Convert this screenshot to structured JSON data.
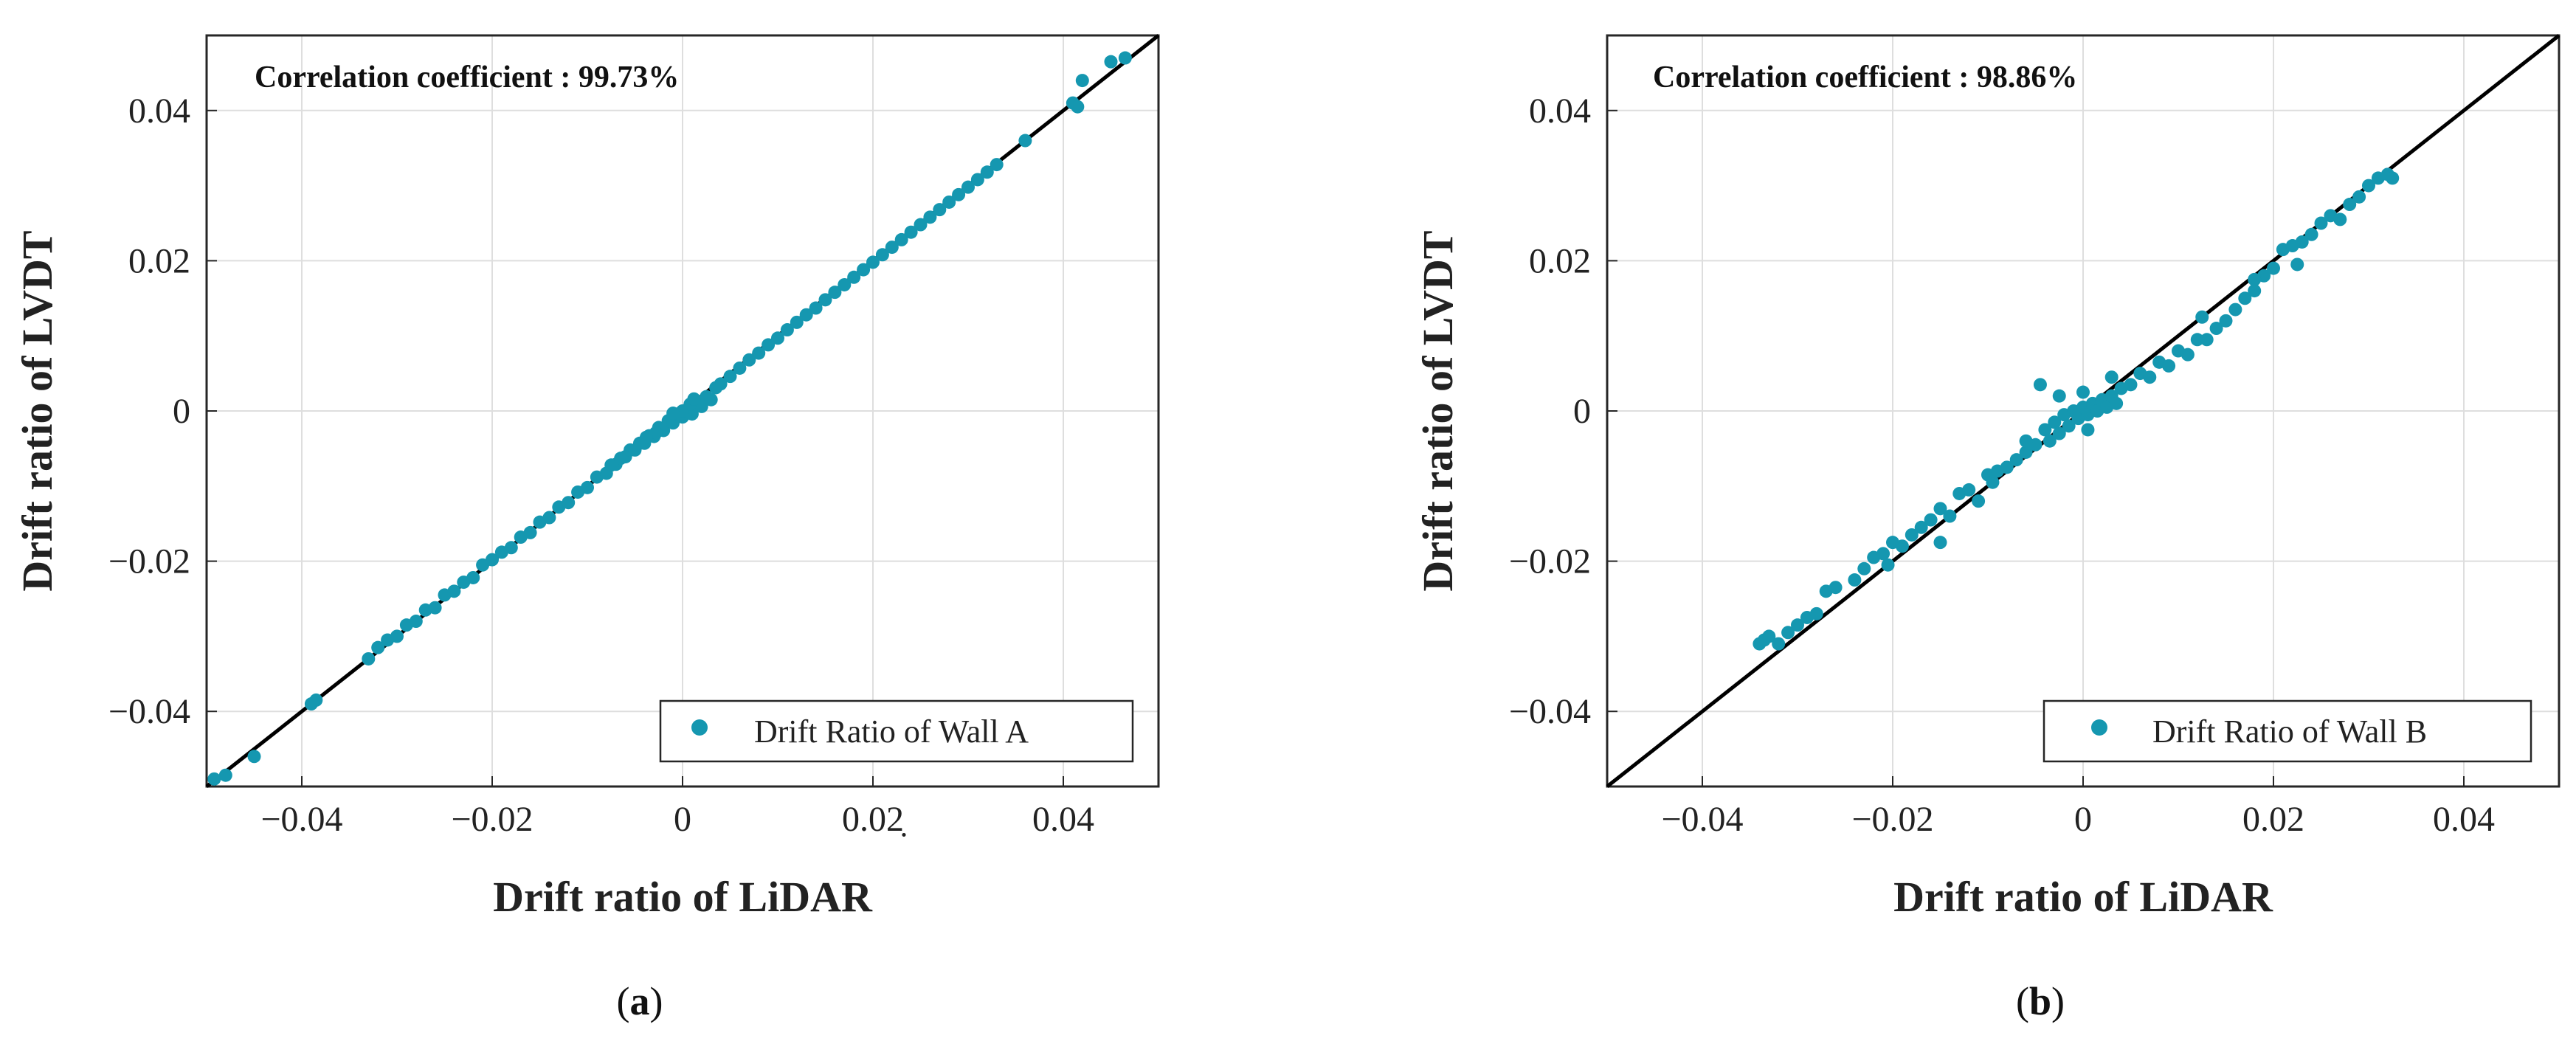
{
  "chart_data": [
    {
      "type": "scatter",
      "panel_label_open": "(",
      "panel_label_letter": "a",
      "panel_label_close": ")",
      "annotation": "Correlation coefficient : 99.73%",
      "xlabel": "Drift ratio of LiDAR",
      "ylabel": "Drift ratio of LVDT",
      "xlim": [
        -0.05,
        0.05
      ],
      "ylim": [
        -0.05,
        0.05
      ],
      "x_ticks": [
        -0.04,
        -0.02,
        0,
        0.02,
        0.04
      ],
      "x_tick_labels": [
        "−0.04",
        "−0.02",
        "0",
        "0.02̣",
        "0.04"
      ],
      "y_ticks": [
        -0.04,
        -0.02,
        0,
        0.02,
        0.04
      ],
      "y_tick_labels": [
        "−0.04",
        "−0.02",
        "0",
        "0.02",
        "0.04"
      ],
      "grid": true,
      "legend": {
        "label": "Drift Ratio of Wall A",
        "placement": "bottom-right"
      },
      "marker_color": "#1597b0",
      "reference_line": {
        "x": [
          -0.05,
          0.05
        ],
        "y": [
          -0.05,
          0.05
        ],
        "color": "#000000"
      },
      "series": [
        {
          "name": "Drift Ratio of Wall A",
          "points": [
            [
              -0.048,
              -0.0485
            ],
            [
              -0.045,
              -0.046
            ],
            [
              -0.039,
              -0.039
            ],
            [
              -0.0385,
              -0.0385
            ],
            [
              -0.033,
              -0.033
            ],
            [
              -0.032,
              -0.0315
            ],
            [
              -0.031,
              -0.0305
            ],
            [
              -0.03,
              -0.03
            ],
            [
              -0.029,
              -0.0285
            ],
            [
              -0.028,
              -0.028
            ],
            [
              -0.027,
              -0.0265
            ],
            [
              -0.026,
              -0.0262
            ],
            [
              -0.025,
              -0.0245
            ],
            [
              -0.024,
              -0.024
            ],
            [
              -0.023,
              -0.0228
            ],
            [
              -0.022,
              -0.0222
            ],
            [
              -0.021,
              -0.0205
            ],
            [
              -0.02,
              -0.0198
            ],
            [
              -0.019,
              -0.0188
            ],
            [
              -0.018,
              -0.0182
            ],
            [
              -0.017,
              -0.0168
            ],
            [
              -0.016,
              -0.0162
            ],
            [
              -0.015,
              -0.0148
            ],
            [
              -0.014,
              -0.0142
            ],
            [
              -0.013,
              -0.0128
            ],
            [
              -0.012,
              -0.0122
            ],
            [
              -0.011,
              -0.0108
            ],
            [
              -0.01,
              -0.0102
            ],
            [
              -0.009,
              -0.0088
            ],
            [
              -0.008,
              -0.0083
            ],
            [
              -0.0075,
              -0.0072
            ],
            [
              -0.007,
              -0.0071
            ],
            [
              -0.0065,
              -0.0063
            ],
            [
              -0.006,
              -0.0061
            ],
            [
              -0.0055,
              -0.0052
            ],
            [
              -0.005,
              -0.0052
            ],
            [
              -0.0045,
              -0.0043
            ],
            [
              -0.004,
              -0.0043
            ],
            [
              -0.0035,
              -0.0033
            ],
            [
              -0.003,
              -0.0034
            ],
            [
              -0.0025,
              -0.0022
            ],
            [
              -0.002,
              -0.0026
            ],
            [
              -0.0015,
              -0.0013
            ],
            [
              -0.001,
              -0.0016
            ],
            [
              -0.0005,
              -0.0004
            ],
            [
              0.0,
              -0.0008
            ],
            [
              0.0005,
              0.0002
            ],
            [
              0.001,
              -0.0004
            ],
            [
              0.0015,
              0.0011
            ],
            [
              0.002,
              0.0006
            ],
            [
              0.0025,
              0.0019
            ],
            [
              0.003,
              0.0015
            ],
            [
              0.0035,
              0.0031
            ],
            [
              0.004,
              0.0036
            ],
            [
              0.005,
              0.0046
            ],
            [
              0.006,
              0.0057
            ],
            [
              0.007,
              0.0068
            ],
            [
              0.008,
              0.0077
            ],
            [
              0.009,
              0.0088
            ],
            [
              0.01,
              0.0097
            ],
            [
              0.011,
              0.0108
            ],
            [
              0.012,
              0.0118
            ],
            [
              0.013,
              0.0128
            ],
            [
              0.014,
              0.0137
            ],
            [
              0.015,
              0.0148
            ],
            [
              0.016,
              0.0158
            ],
            [
              0.017,
              0.0168
            ],
            [
              0.018,
              0.0178
            ],
            [
              0.019,
              0.0188
            ],
            [
              0.02,
              0.0198
            ],
            [
              0.021,
              0.0208
            ],
            [
              0.022,
              0.0218
            ],
            [
              0.023,
              0.0228
            ],
            [
              0.024,
              0.0238
            ],
            [
              0.025,
              0.0248
            ],
            [
              0.026,
              0.0258
            ],
            [
              0.027,
              0.0268
            ],
            [
              0.028,
              0.0278
            ],
            [
              0.029,
              0.0288
            ],
            [
              0.03,
              0.0298
            ],
            [
              0.031,
              0.0308
            ],
            [
              0.032,
              0.0318
            ],
            [
              0.033,
              0.0328
            ],
            [
              0.036,
              0.036
            ],
            [
              0.041,
              0.041
            ],
            [
              0.0415,
              0.0405
            ],
            [
              0.042,
              0.044
            ],
            [
              0.045,
              0.0465
            ],
            [
              0.0465,
              0.047
            ],
            [
              -0.0492,
              -0.049
            ],
            [
              0.0,
              0.0
            ],
            [
              -0.001,
              -0.0003
            ],
            [
              0.0008,
              0.0009
            ],
            [
              -0.0028,
              -0.0029
            ],
            [
              0.0012,
              0.0016
            ],
            [
              -0.0038,
              -0.0035
            ]
          ]
        }
      ]
    },
    {
      "type": "scatter",
      "panel_label_open": "(",
      "panel_label_letter": "b",
      "panel_label_close": ")",
      "annotation": "Correlation coefficient : 98.86%",
      "xlabel": "Drift ratio of LiDAR",
      "ylabel": "Drift ratio of LVDT",
      "xlim": [
        -0.05,
        0.05
      ],
      "ylim": [
        -0.05,
        0.05
      ],
      "x_ticks": [
        -0.04,
        -0.02,
        0,
        0.02,
        0.04
      ],
      "x_tick_labels": [
        "−0.04",
        "−0.02",
        "0",
        "0.02",
        "0.04"
      ],
      "y_ticks": [
        -0.04,
        -0.02,
        0,
        0.02,
        0.04
      ],
      "y_tick_labels": [
        "−0.04",
        "−0.02",
        "0",
        "0.02",
        "0.04"
      ],
      "grid": true,
      "legend": {
        "label": "Drift Ratio of Wall B",
        "placement": "bottom-right"
      },
      "marker_color": "#1597b0",
      "reference_line": {
        "x": [
          -0.05,
          0.05
        ],
        "y": [
          -0.05,
          0.05
        ],
        "color": "#000000"
      },
      "series": [
        {
          "name": "Drift Ratio of Wall B",
          "points": [
            [
              -0.034,
              -0.031
            ],
            [
              -0.0335,
              -0.0305
            ],
            [
              -0.033,
              -0.03
            ],
            [
              -0.032,
              -0.031
            ],
            [
              -0.031,
              -0.0295
            ],
            [
              -0.03,
              -0.0285
            ],
            [
              -0.029,
              -0.0275
            ],
            [
              -0.028,
              -0.027
            ],
            [
              -0.027,
              -0.024
            ],
            [
              -0.026,
              -0.0235
            ],
            [
              -0.024,
              -0.0225
            ],
            [
              -0.023,
              -0.021
            ],
            [
              -0.022,
              -0.0195
            ],
            [
              -0.021,
              -0.019
            ],
            [
              -0.02,
              -0.0175
            ],
            [
              -0.019,
              -0.018
            ],
            [
              -0.018,
              -0.0165
            ],
            [
              -0.017,
              -0.0155
            ],
            [
              -0.016,
              -0.0145
            ],
            [
              -0.015,
              -0.013
            ],
            [
              -0.014,
              -0.014
            ],
            [
              -0.013,
              -0.011
            ],
            [
              -0.012,
              -0.0105
            ],
            [
              -0.011,
              -0.012
            ],
            [
              -0.01,
              -0.0085
            ],
            [
              -0.009,
              -0.008
            ],
            [
              -0.008,
              -0.0075
            ],
            [
              -0.007,
              -0.0065
            ],
            [
              -0.006,
              -0.0055
            ],
            [
              -0.005,
              -0.0045
            ],
            [
              -0.004,
              -0.0025
            ],
            [
              -0.0035,
              -0.004
            ],
            [
              -0.003,
              -0.0015
            ],
            [
              -0.0025,
              -0.003
            ],
            [
              -0.002,
              -0.0005
            ],
            [
              -0.0015,
              -0.002
            ],
            [
              -0.001,
              0.0
            ],
            [
              -0.0005,
              -0.001
            ],
            [
              0.0,
              0.0005
            ],
            [
              0.0005,
              -0.0005
            ],
            [
              0.001,
              0.001
            ],
            [
              0.0015,
              0.0
            ],
            [
              0.002,
              0.0015
            ],
            [
              0.0025,
              0.0005
            ],
            [
              0.003,
              0.002
            ],
            [
              0.0035,
              0.001
            ],
            [
              0.004,
              0.003
            ],
            [
              0.005,
              0.0035
            ],
            [
              0.006,
              0.005
            ],
            [
              0.007,
              0.0045
            ],
            [
              0.008,
              0.0065
            ],
            [
              0.009,
              0.006
            ],
            [
              0.01,
              0.008
            ],
            [
              0.011,
              0.0075
            ],
            [
              0.012,
              0.0095
            ],
            [
              0.013,
              0.0095
            ],
            [
              0.014,
              0.011
            ],
            [
              0.015,
              0.012
            ],
            [
              0.016,
              0.0135
            ],
            [
              0.017,
              0.015
            ],
            [
              0.018,
              0.016
            ],
            [
              0.019,
              0.018
            ],
            [
              0.02,
              0.019
            ],
            [
              0.021,
              0.0215
            ],
            [
              0.022,
              0.022
            ],
            [
              0.023,
              0.0225
            ],
            [
              0.024,
              0.0235
            ],
            [
              0.025,
              0.025
            ],
            [
              0.026,
              0.026
            ],
            [
              0.027,
              0.0255
            ],
            [
              0.028,
              0.0275
            ],
            [
              0.029,
              0.0285
            ],
            [
              0.03,
              0.03
            ],
            [
              0.031,
              0.031
            ],
            [
              0.032,
              0.0315
            ],
            [
              0.0325,
              0.031
            ],
            [
              -0.0045,
              0.0035
            ],
            [
              -0.0025,
              0.002
            ],
            [
              0.0,
              0.0025
            ],
            [
              0.003,
              0.0045
            ],
            [
              -0.006,
              -0.004
            ],
            [
              0.0005,
              -0.0025
            ],
            [
              -0.0095,
              -0.0095
            ],
            [
              0.0125,
              0.0125
            ],
            [
              -0.015,
              -0.0175
            ],
            [
              0.018,
              0.0175
            ],
            [
              -0.0205,
              -0.0205
            ],
            [
              0.0225,
              0.0195
            ]
          ]
        }
      ]
    }
  ]
}
